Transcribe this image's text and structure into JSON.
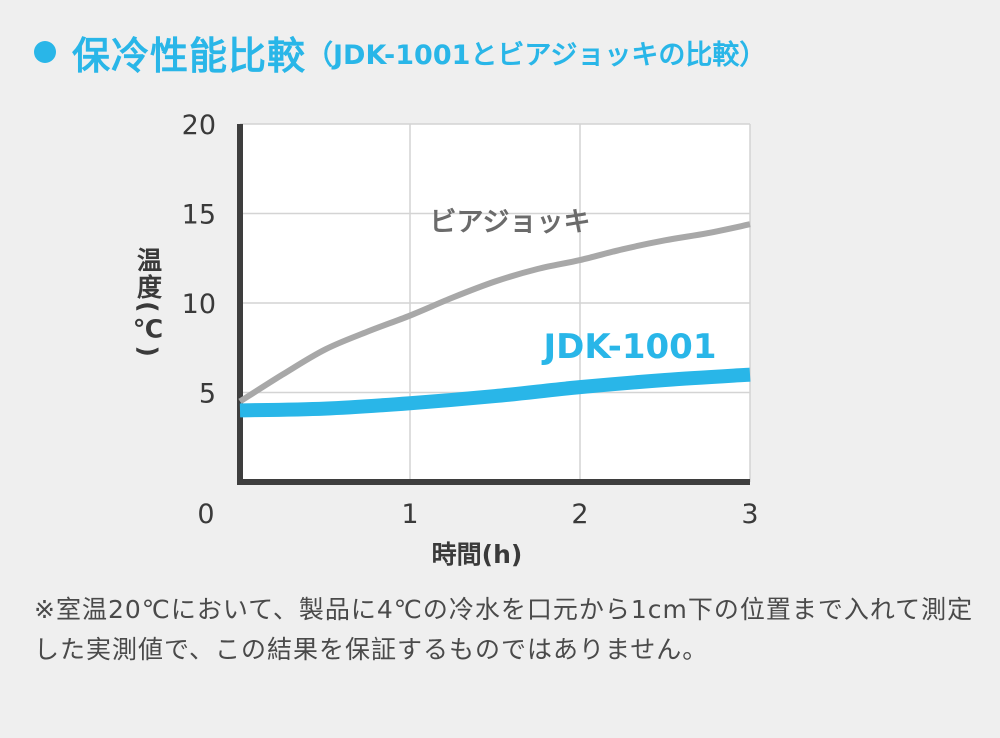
{
  "header": {
    "title": "保冷性能比較",
    "subtitle": "（JDK-1001とビアジョッキの比較）",
    "accent_color": "#29b6e8",
    "bullet_icon": "bullet-dot-icon"
  },
  "chart_data": {
    "type": "line",
    "xlabel": "時間(h)",
    "ylabel": "温度(℃)",
    "xlim": [
      0,
      3
    ],
    "ylim": [
      0,
      20
    ],
    "x_ticks": [
      "0",
      "1",
      "2",
      "3"
    ],
    "y_ticks": [
      "5",
      "10",
      "15",
      "20"
    ],
    "grid": true,
    "series": [
      {
        "name": "ビアジョッキ",
        "color": "#a8a8a8",
        "x": [
          0,
          0.25,
          0.5,
          0.75,
          1.0,
          1.25,
          1.5,
          1.75,
          2.0,
          2.25,
          2.5,
          2.75,
          3.0
        ],
        "y": [
          4.5,
          6.0,
          7.4,
          8.4,
          9.3,
          10.3,
          11.2,
          11.9,
          12.4,
          13.0,
          13.5,
          13.9,
          14.4
        ]
      },
      {
        "name": "JDK-1001",
        "color": "#29b6e8",
        "x": [
          0,
          0.5,
          1.0,
          1.5,
          2.0,
          2.5,
          3.0
        ],
        "y": [
          4.0,
          4.1,
          4.4,
          4.8,
          5.3,
          5.7,
          6.0
        ]
      }
    ]
  },
  "note": "※室温20℃において、製品に4℃の冷水を口元から1cm下の位置まで入れて測定した実測値で、この結果を保証するものではありません。"
}
